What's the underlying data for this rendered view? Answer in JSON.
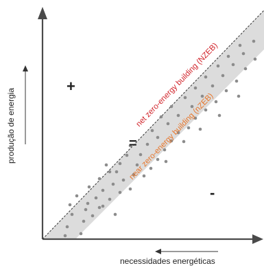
{
  "labels": {
    "y_axis": "produção de energia",
    "x_axis": "necessidades energéticas",
    "plus": "+",
    "minus": "-",
    "equals": "=",
    "nzeb_line": "net zero-energy building (NZEB)",
    "band_label": "near zero-energy building (nZEB)"
  },
  "colors": {
    "band_fill": "#dcdcdc",
    "dots": "#8c8c8c",
    "axes": "#4a4a4a",
    "nzeb_text": "#d1232a",
    "band_text": "#e8762b"
  },
  "scatter_dots": [
    [
      95,
      343
    ],
    [
      118,
      340
    ],
    [
      98,
      330
    ],
    [
      122,
      322
    ],
    [
      105,
      312
    ],
    [
      135,
      314
    ],
    [
      150,
      300
    ],
    [
      102,
      298
    ],
    [
      128,
      296
    ],
    [
      112,
      285
    ],
    [
      140,
      288
    ],
    [
      160,
      290
    ],
    [
      150,
      277
    ],
    [
      175,
      280
    ],
    [
      165,
      268
    ],
    [
      130,
      272
    ],
    [
      145,
      260
    ],
    [
      180,
      262
    ],
    [
      190,
      275
    ],
    [
      160,
      250
    ],
    [
      195,
      254
    ],
    [
      155,
      240
    ],
    [
      175,
      238
    ],
    [
      200,
      240
    ],
    [
      210,
      256
    ],
    [
      220,
      245
    ],
    [
      185,
      226
    ],
    [
      205,
      225
    ],
    [
      230,
      232
    ],
    [
      190,
      212
    ],
    [
      215,
      210
    ],
    [
      240,
      218
    ],
    [
      230,
      200
    ],
    [
      250,
      205
    ],
    [
      222,
      190
    ],
    [
      260,
      193
    ],
    [
      245,
      180
    ],
    [
      275,
      186
    ],
    [
      235,
      170
    ],
    [
      260,
      168
    ],
    [
      285,
      172
    ],
    [
      250,
      155
    ],
    [
      280,
      155
    ],
    [
      300,
      160
    ],
    [
      270,
      142
    ],
    [
      295,
      140
    ],
    [
      315,
      148
    ],
    [
      285,
      128
    ],
    [
      310,
      125
    ],
    [
      330,
      132
    ],
    [
      300,
      112
    ],
    [
      325,
      110
    ],
    [
      345,
      118
    ],
    [
      318,
      96
    ],
    [
      340,
      94
    ],
    [
      358,
      100
    ],
    [
      333,
      82
    ],
    [
      355,
      78
    ],
    [
      372,
      86
    ],
    [
      350,
      66
    ],
    [
      370,
      60
    ],
    [
      145,
      302
    ],
    [
      125,
      305
    ],
    [
      168,
      312
    ],
    [
      170,
      250
    ],
    [
      242,
      235
    ],
    [
      268,
      206
    ],
    [
      292,
      188
    ],
    [
      320,
      168
    ],
    [
      348,
      140
    ]
  ]
}
